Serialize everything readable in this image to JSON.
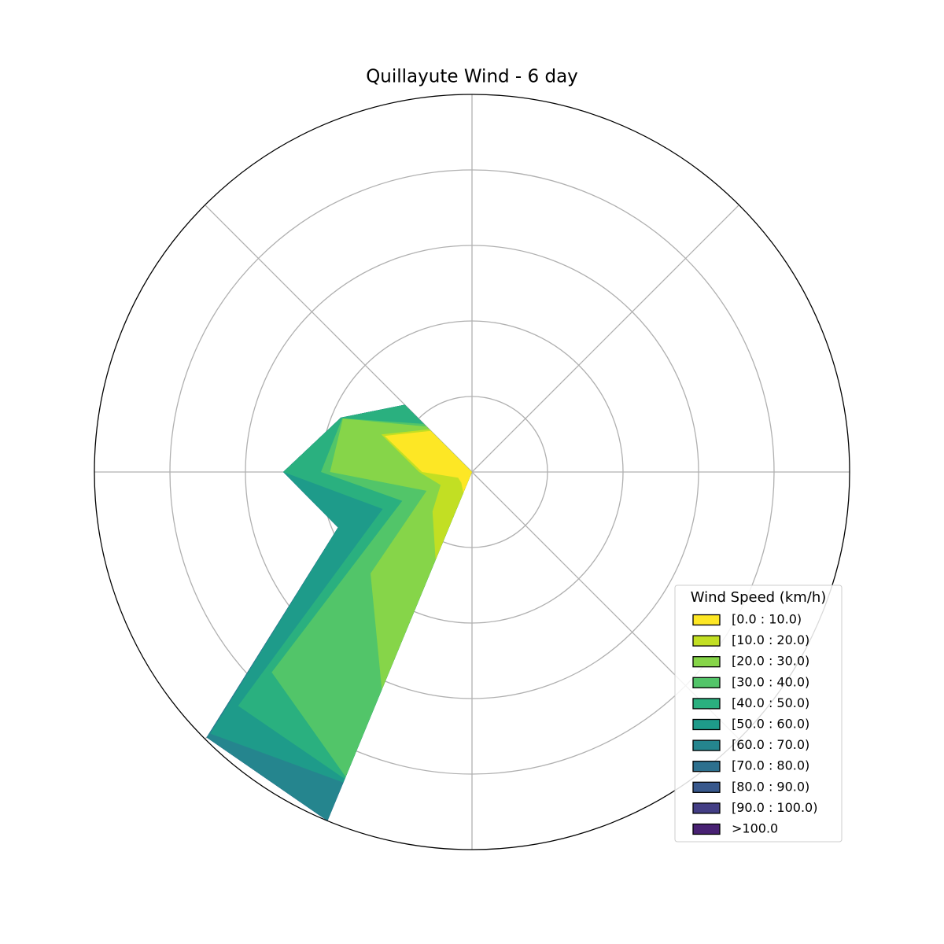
{
  "chart_data": {
    "type": "windrose",
    "title": "Quillayute Wind - 6 day",
    "legend_title": "Wind Speed (km/h)",
    "legend": "lower right",
    "directions": [
      0,
      22.5,
      45,
      67.5,
      90,
      112.5,
      135,
      157.5,
      180,
      202.5,
      225,
      247.5,
      270,
      292.5,
      315,
      337.5
    ],
    "rlim": [
      0,
      5
    ],
    "rticks": [
      1,
      2,
      3,
      4
    ],
    "thetaticks": [
      0,
      45,
      90,
      135,
      180,
      225,
      270,
      315
    ],
    "grid": true,
    "series": [
      {
        "name": "[0.0 : 10.0)",
        "color": "#fde725",
        "values": [
          0,
          0,
          0,
          0,
          0,
          0,
          0,
          0,
          0,
          0.3,
          0.2,
          0.2,
          0.66,
          1.25,
          0.77,
          0
        ]
      },
      {
        "name": "[10.0 : 20.0)",
        "color": "#c2df23",
        "values": [
          0,
          0,
          0,
          0,
          0,
          0,
          0,
          0,
          0,
          0.96,
          0.54,
          0.25,
          0.04,
          0.05,
          0.03,
          0
        ]
      },
      {
        "name": "[20.0 : 30.0)",
        "color": "#86d549",
        "values": [
          0,
          0,
          0,
          0,
          0,
          0,
          0,
          0,
          0,
          1.86,
          1.16,
          0.2,
          1.18,
          0.55,
          0.05,
          0
        ]
      },
      {
        "name": "[30.0 : 40.0)",
        "color": "#52c569",
        "values": [
          0,
          0,
          0,
          0,
          0,
          0,
          0,
          0,
          0,
          1.25,
          1.85,
          0.35,
          0.12,
          0.01,
          0.05,
          0
        ]
      },
      {
        "name": "[40.0 : 50.0)",
        "color": "#2ab07f",
        "values": [
          0,
          0,
          0,
          0,
          0,
          0,
          0,
          0,
          0,
          0.03,
          0.63,
          0.28,
          0.5,
          0.02,
          0.36,
          0
        ]
      },
      {
        "name": "[50.0 : 60.0)",
        "color": "#1e9b8a",
        "values": [
          0,
          0,
          0,
          0,
          0,
          0,
          0,
          0,
          0,
          0.05,
          0.52,
          0.64,
          0,
          0,
          0,
          0
        ]
      },
      {
        "name": "[60.0 : 70.0)",
        "color": "#25858e",
        "values": [
          0,
          0,
          0,
          0,
          0,
          0,
          0,
          0,
          0,
          0.55,
          0.07,
          0,
          0,
          0,
          0,
          0
        ]
      },
      {
        "name": "[70.0 : 80.0)",
        "color": "#2d708e",
        "values": [
          0,
          0,
          0,
          0,
          0,
          0,
          0,
          0,
          0,
          0,
          0,
          0,
          0,
          0,
          0,
          0
        ]
      },
      {
        "name": "[80.0 : 90.0)",
        "color": "#38588c",
        "values": [
          0,
          0,
          0,
          0,
          0,
          0,
          0,
          0,
          0,
          0,
          0,
          0,
          0,
          0,
          0,
          0
        ]
      },
      {
        "name": "[90.0 : 100.0)",
        "color": "#433e85",
        "values": [
          0,
          0,
          0,
          0,
          0,
          0,
          0,
          0,
          0,
          0,
          0,
          0,
          0,
          0,
          0,
          0
        ]
      },
      {
        "name": ">100.0",
        "color": "#482173",
        "values": [
          0,
          0,
          0,
          0,
          0,
          0,
          0,
          0,
          0,
          0,
          0,
          0,
          0,
          0,
          0,
          0
        ]
      }
    ]
  }
}
